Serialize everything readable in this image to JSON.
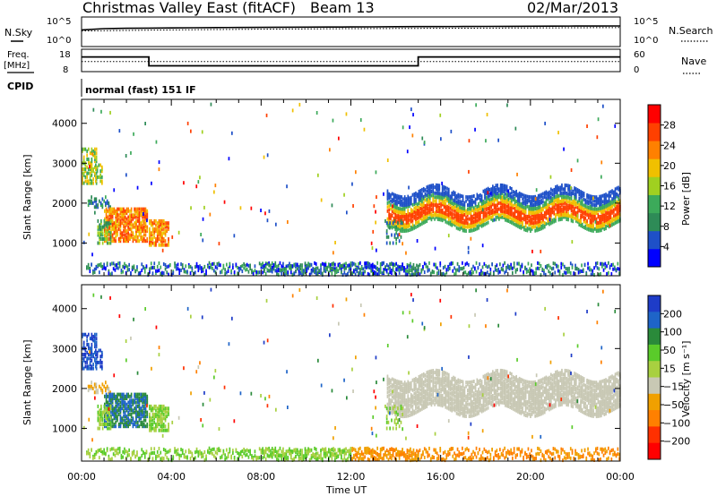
{
  "header": {
    "title": "Christmas Valley East (fitACF)",
    "beam": "Beam 13",
    "date": "02/Mar/2013"
  },
  "top_panels": {
    "nsky_label": "N.Sky",
    "nsearch_label": "N.Search",
    "nsky_ticks": [
      "10^5",
      "10^0"
    ],
    "nsearch_ticks": [
      "10^5",
      "10^0"
    ],
    "freq_label": "Freq.",
    "freq_unit": "[MHz]",
    "freq_ticks": [
      "18",
      "8"
    ],
    "nave_label": "Nave",
    "nave_ticks": [
      "60",
      "0"
    ],
    "cpid_label": "CPID",
    "cpid_text": "normal (fast) 151 IF"
  },
  "colors": {
    "power_scale": [
      "#0000ff",
      "#1e50c8",
      "#2e8b57",
      "#3caa5a",
      "#a0d020",
      "#f0c000",
      "#ff8000",
      "#ff4000",
      "#ff0000"
    ],
    "velocity_scale": [
      "#1e3cc8",
      "#1e64c8",
      "#2a8a3a",
      "#5acb2a",
      "#a8d040",
      "#c8c8b4",
      "#f0a000",
      "#ff8000",
      "#ff3000",
      "#ff0000"
    ]
  },
  "chart_data": [
    {
      "type": "line",
      "name": "n-sky-n-search",
      "ylabel": "N.Sky",
      "y2label": "N.Search",
      "x_range_hours": [
        0,
        24
      ],
      "y_scale": "log",
      "y_ticks": [
        "10^5",
        "10^0"
      ],
      "series": [
        {
          "name": "N.Sky",
          "style": "solid",
          "x": [
            0,
            1,
            2,
            3,
            4,
            5,
            6,
            7,
            8,
            9,
            10,
            11,
            12,
            13,
            14,
            15,
            16,
            17,
            18,
            19,
            20,
            21,
            22,
            23,
            24
          ],
          "y": [
            500,
            900,
            1100,
            1200,
            1300,
            1400,
            1500,
            1600,
            1700,
            1800,
            1900,
            2000,
            2100,
            2200,
            2300,
            2400,
            2500,
            2600,
            2700,
            2800,
            2900,
            3000,
            3100,
            3200,
            3300
          ]
        },
        {
          "name": "N.Search",
          "style": "dotted",
          "x": [
            0,
            4,
            8,
            12,
            16,
            20,
            24
          ],
          "y": [
            300,
            500,
            700,
            900,
            1100,
            1300,
            1500
          ]
        }
      ]
    },
    {
      "type": "line",
      "name": "freq-nave",
      "ylabel": "Freq. [MHz]",
      "y2label": "Nave",
      "x_range_hours": [
        0,
        24
      ],
      "y_range": [
        8,
        18
      ],
      "y2_range": [
        0,
        60
      ],
      "y_ticks": [
        "18",
        "8"
      ],
      "y2_ticks": [
        "60",
        "0"
      ],
      "series": [
        {
          "name": "Freq.",
          "style": "solid",
          "x": [
            0,
            3,
            3,
            15,
            15,
            24
          ],
          "y": [
            14.7,
            14.7,
            10.4,
            10.4,
            14.7,
            14.7
          ]
        },
        {
          "name": "Nave",
          "style": "dotted",
          "x": [
            0,
            24
          ],
          "y": [
            27,
            27
          ]
        }
      ]
    },
    {
      "type": "heatmap",
      "name": "power",
      "ylabel": "Slant Range [km]",
      "colorbar_label": "Power [dB]",
      "colorbar_ticks": [
        "4",
        "8",
        "12",
        "16",
        "20",
        "24",
        "28"
      ],
      "x_range_hours": [
        0,
        24
      ],
      "y_range_km": [
        180,
        4600
      ],
      "y_ticks": [
        "1000",
        "2000",
        "3000",
        "4000"
      ],
      "x_ticks": [
        "00:00",
        "04:00",
        "08:00",
        "12:00",
        "16:00",
        "20:00",
        "00:00"
      ]
    },
    {
      "type": "heatmap",
      "name": "velocity",
      "ylabel": "Slant Range [km]",
      "colorbar_label": "Velocity [m s⁻¹]",
      "colorbar_ticks": [
        "200",
        "100",
        "50",
        "15",
        "−15",
        "−50",
        "−100",
        "−200"
      ],
      "x_range_hours": [
        0,
        24
      ],
      "y_range_km": [
        180,
        4600
      ],
      "y_ticks": [
        "1000",
        "2000",
        "3000",
        "4000"
      ],
      "x_ticks": [
        "00:00",
        "04:00",
        "08:00",
        "12:00",
        "16:00",
        "20:00",
        "00:00"
      ],
      "xlabel": "Time UT"
    }
  ]
}
